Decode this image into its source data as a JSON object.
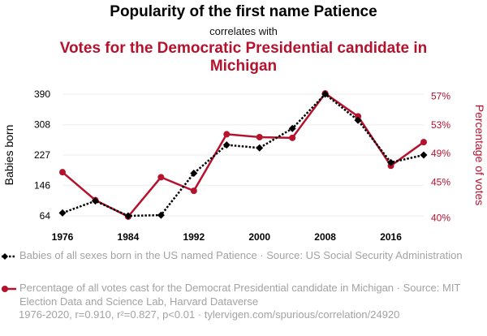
{
  "header": {
    "title": "Popularity of the first name Patience",
    "connector": "correlates with",
    "title2": "Votes for the Democratic Presidential candidate in Michigan"
  },
  "legend": {
    "series1": "Babies of all sexes born in the US named Patience · Source: US Social Security Administration",
    "series2": "Percentage of all votes cast for the Democrat Presidential candidate in Michigan · Source: MIT Election Data and Science Lab, Harvard Dataverse"
  },
  "footer": "1976-2020, r=0.910, r²=0.827, p<0.01 · tylervigen.com/spurious/correlation/24920",
  "colors": {
    "babies": "#000000",
    "votes": "#b5122e",
    "grid": "#eeeeee"
  },
  "chart_data": {
    "type": "line",
    "x": [
      1976,
      1980,
      1984,
      1988,
      1992,
      1996,
      2000,
      2004,
      2008,
      2012,
      2016,
      2020
    ],
    "xticks": [
      1976,
      1984,
      1992,
      2000,
      2008,
      2016
    ],
    "xlim": [
      1976,
      2020
    ],
    "ylabel_left": "Babies born",
    "ylabel_right": "Percentage of votes",
    "yticks_left": [
      64,
      146,
      227,
      308,
      390
    ],
    "yticks_left_labels": [
      "64",
      "146",
      "227",
      "308",
      "390"
    ],
    "ylim_left": [
      64,
      390
    ],
    "yticks_right": [
      40,
      45,
      49,
      53,
      57
    ],
    "yticks_right_labels": [
      "40%",
      "45%",
      "49%",
      "53%",
      "57%"
    ],
    "ylim_right": [
      40.3,
      57.3
    ],
    "series": [
      {
        "name": "Babies of all sexes born in the US named Patience",
        "axis": "left",
        "marker": "diamond",
        "values": [
          72,
          104,
          64,
          66,
          178,
          254,
          246,
          298,
          390,
          320,
          207,
          227
        ]
      },
      {
        "name": "Percentage of all votes cast for the Democrat Presidential candidate in Michigan",
        "axis": "right",
        "marker": "circle",
        "values": [
          46.4,
          42.5,
          40.2,
          45.7,
          43.8,
          51.7,
          51.3,
          51.2,
          57.4,
          54.2,
          47.3,
          50.6
        ]
      }
    ]
  }
}
